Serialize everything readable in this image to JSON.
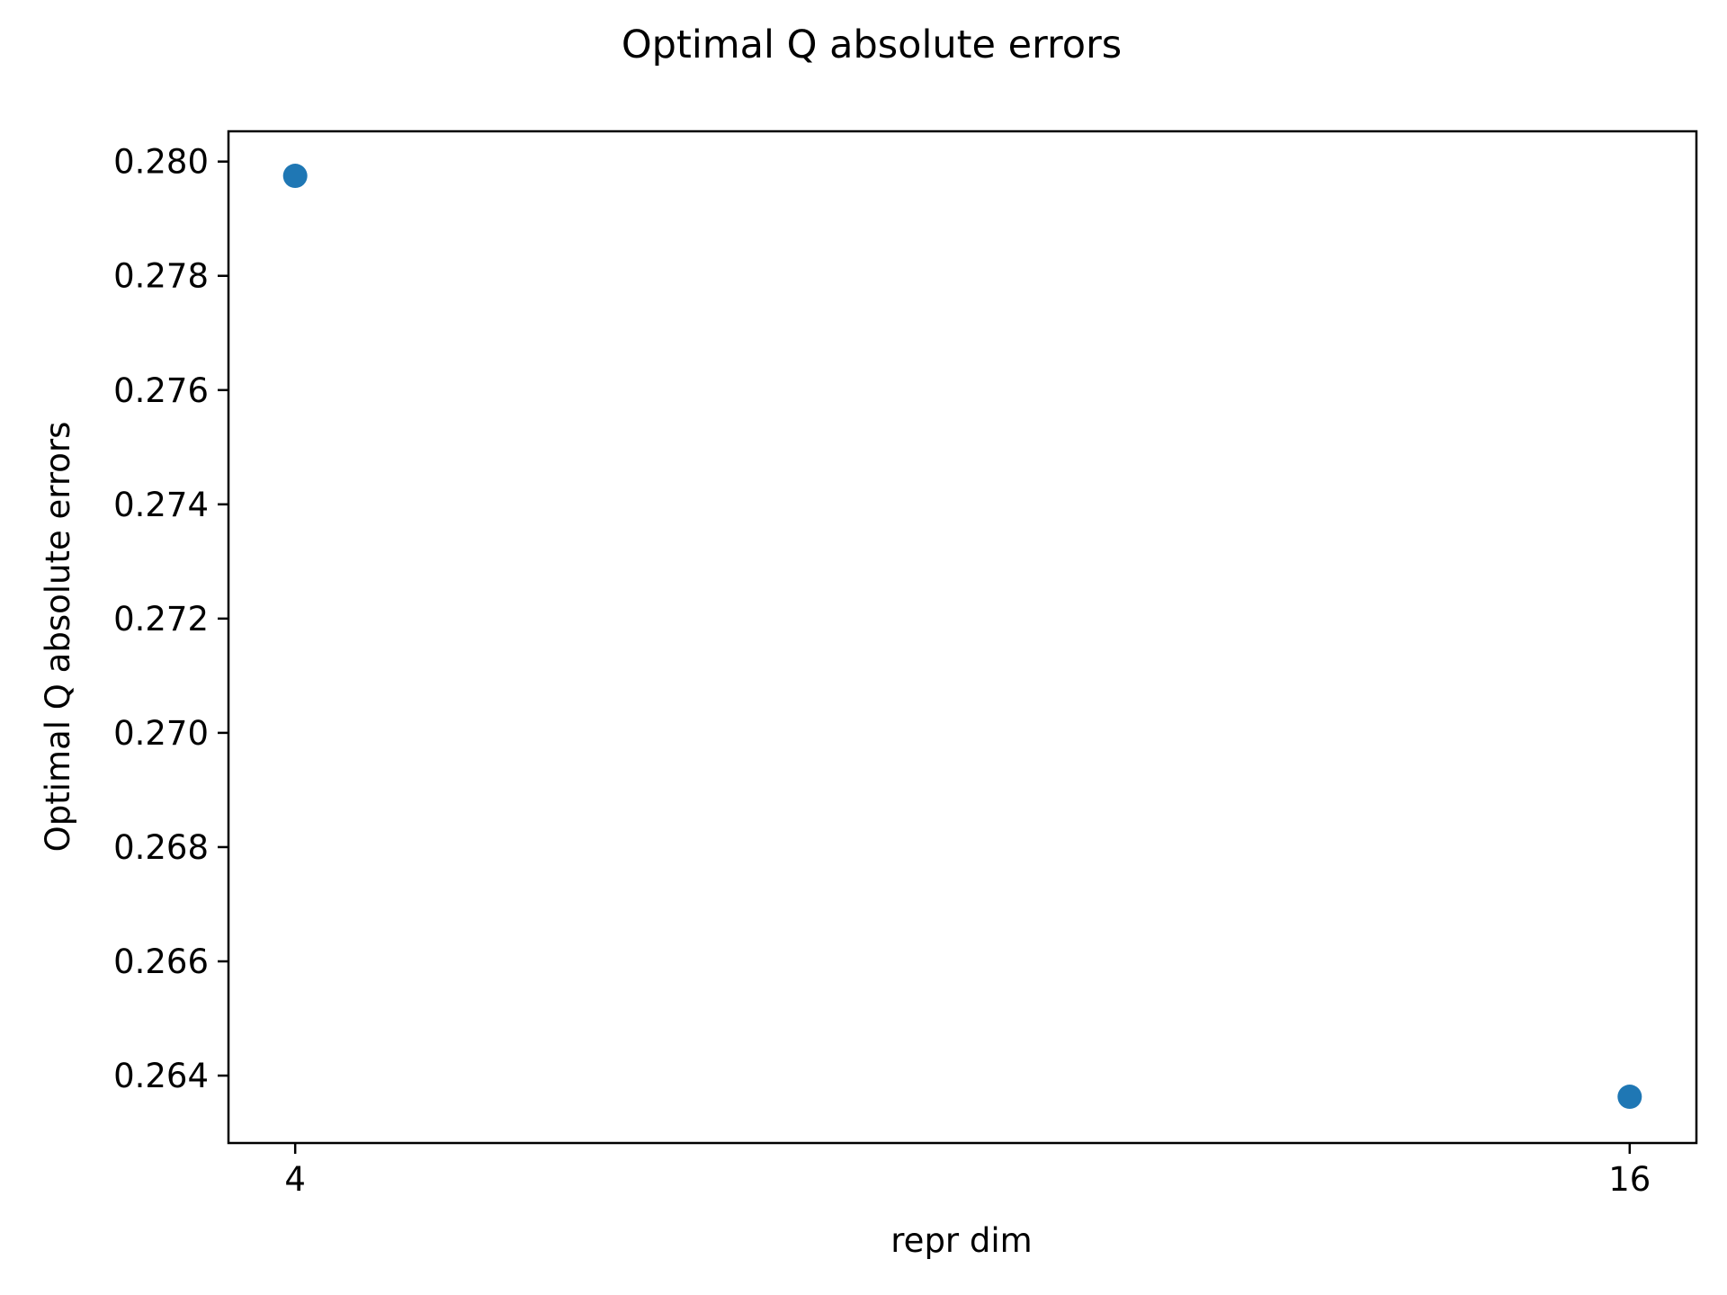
{
  "chart_data": {
    "type": "scatter",
    "title": "Optimal Q absolute errors",
    "xlabel": "repr dim",
    "ylabel": "Optimal Q absolute errors",
    "x_ticks": [
      {
        "value": 4,
        "label": "4"
      },
      {
        "value": 16,
        "label": "16"
      }
    ],
    "y_ticks": [
      {
        "value": 0.264,
        "label": "0.264"
      },
      {
        "value": 0.266,
        "label": "0.266"
      },
      {
        "value": 0.268,
        "label": "0.268"
      },
      {
        "value": 0.27,
        "label": "0.270"
      },
      {
        "value": 0.272,
        "label": "0.272"
      },
      {
        "value": 0.274,
        "label": "0.274"
      },
      {
        "value": 0.276,
        "label": "0.276"
      },
      {
        "value": 0.278,
        "label": "0.278"
      },
      {
        "value": 0.28,
        "label": "0.280"
      }
    ],
    "xlim": [
      3.4,
      16.6
    ],
    "ylim": [
      0.26282,
      0.28053
    ],
    "series": [
      {
        "x": [
          4,
          16
        ],
        "y": [
          0.27975,
          0.26363
        ]
      }
    ],
    "grid": false,
    "legend": "none",
    "marker_color": "#1f77b4"
  }
}
